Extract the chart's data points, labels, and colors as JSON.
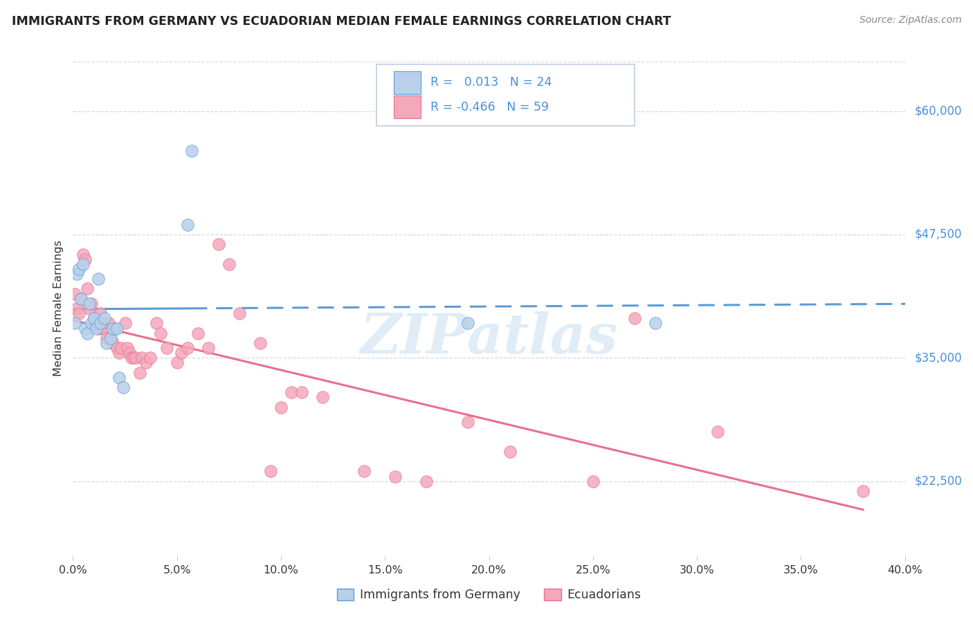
{
  "title": "IMMIGRANTS FROM GERMANY VS ECUADORIAN MEDIAN FEMALE EARNINGS CORRELATION CHART",
  "source": "Source: ZipAtlas.com",
  "ylabel": "Median Female Earnings",
  "y_ticks": [
    22500,
    35000,
    47500,
    60000
  ],
  "y_tick_labels": [
    "$22,500",
    "$35,000",
    "$47,500",
    "$60,000"
  ],
  "x_min": 0.0,
  "x_max": 0.4,
  "y_min": 15000,
  "y_max": 65000,
  "legend_label1": "Immigrants from Germany",
  "legend_label2": "Ecuadorians",
  "color_blue": "#b8d0ea",
  "color_pink": "#f4a8bc",
  "color_blue_dark": "#5b9bd5",
  "color_pink_dark": "#e8708a",
  "color_blue_text": "#4a90d9",
  "watermark": "ZIPatlas",
  "germany_x": [
    0.001,
    0.002,
    0.003,
    0.004,
    0.005,
    0.006,
    0.007,
    0.008,
    0.009,
    0.01,
    0.011,
    0.012,
    0.013,
    0.015,
    0.016,
    0.018,
    0.019,
    0.021,
    0.022,
    0.024,
    0.055,
    0.057,
    0.19,
    0.28
  ],
  "germany_y": [
    38500,
    43500,
    44000,
    41000,
    44500,
    38000,
    37500,
    40500,
    38500,
    39000,
    38000,
    43000,
    38500,
    39000,
    36500,
    37000,
    38000,
    38000,
    33000,
    32000,
    48500,
    56000,
    38500,
    38500
  ],
  "ecuador_x": [
    0.001,
    0.002,
    0.003,
    0.004,
    0.005,
    0.006,
    0.007,
    0.008,
    0.009,
    0.01,
    0.011,
    0.012,
    0.013,
    0.014,
    0.015,
    0.016,
    0.017,
    0.018,
    0.019,
    0.02,
    0.021,
    0.022,
    0.023,
    0.025,
    0.026,
    0.027,
    0.028,
    0.029,
    0.03,
    0.032,
    0.033,
    0.035,
    0.037,
    0.04,
    0.042,
    0.045,
    0.05,
    0.052,
    0.055,
    0.06,
    0.065,
    0.07,
    0.075,
    0.08,
    0.09,
    0.095,
    0.1,
    0.105,
    0.11,
    0.12,
    0.14,
    0.155,
    0.17,
    0.19,
    0.21,
    0.25,
    0.27,
    0.31,
    0.38
  ],
  "ecuador_y": [
    41500,
    40000,
    39500,
    41000,
    45500,
    45000,
    42000,
    40000,
    40500,
    39000,
    38500,
    38000,
    39500,
    38000,
    38000,
    37000,
    38500,
    37000,
    36500,
    38000,
    36000,
    35500,
    36000,
    38500,
    36000,
    35500,
    35000,
    35000,
    35000,
    33500,
    35000,
    34500,
    35000,
    38500,
    37500,
    36000,
    34500,
    35500,
    36000,
    37500,
    36000,
    46500,
    44500,
    39500,
    36500,
    23500,
    30000,
    31500,
    31500,
    31000,
    23500,
    23000,
    22500,
    28500,
    25500,
    22500,
    39000,
    27500,
    21500
  ]
}
